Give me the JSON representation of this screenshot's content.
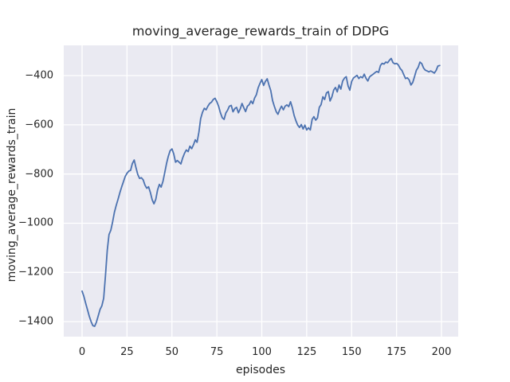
{
  "colors": {
    "figure_bg": "#ffffff",
    "plot_bg": "#eaeaf2",
    "grid": "#ffffff",
    "text": "#262626",
    "line": "#4c72b0"
  },
  "chart_data": {
    "type": "line",
    "title": "moving_average_rewards_train of DDPG",
    "xlabel": "episodes",
    "ylabel": "moving_average_rewards_train",
    "grid": true,
    "legend": false,
    "xlim": [
      -10.2,
      209.3
    ],
    "ylim": [
      -1461,
      -277
    ],
    "x_ticks": [
      {
        "value": 0,
        "label": "0"
      },
      {
        "value": 25,
        "label": "25"
      },
      {
        "value": 50,
        "label": "50"
      },
      {
        "value": 75,
        "label": "75"
      },
      {
        "value": 100,
        "label": "100"
      },
      {
        "value": 125,
        "label": "125"
      },
      {
        "value": 150,
        "label": "150"
      },
      {
        "value": 175,
        "label": "175"
      },
      {
        "value": 200,
        "label": "200"
      }
    ],
    "y_ticks": [
      {
        "value": -400,
        "label": "−400"
      },
      {
        "value": -600,
        "label": "−600"
      },
      {
        "value": -800,
        "label": "−800"
      },
      {
        "value": -1000,
        "label": "−1000"
      },
      {
        "value": -1200,
        "label": "−1200"
      },
      {
        "value": -1400,
        "label": "−1400"
      }
    ],
    "series": [
      {
        "name": "moving_average_rewards_train",
        "color": "#4c72b0",
        "x_start": 0,
        "x_step": 1,
        "values": [
          -1276,
          -1298,
          -1325,
          -1352,
          -1378,
          -1400,
          -1416,
          -1419,
          -1402,
          -1376,
          -1350,
          -1336,
          -1305,
          -1215,
          -1110,
          -1046,
          -1028,
          -995,
          -955,
          -928,
          -903,
          -876,
          -853,
          -831,
          -810,
          -797,
          -788,
          -785,
          -757,
          -743,
          -775,
          -802,
          -818,
          -815,
          -824,
          -845,
          -858,
          -852,
          -875,
          -905,
          -921,
          -903,
          -865,
          -842,
          -853,
          -830,
          -795,
          -757,
          -728,
          -705,
          -698,
          -718,
          -752,
          -745,
          -752,
          -759,
          -734,
          -716,
          -702,
          -709,
          -687,
          -697,
          -681,
          -661,
          -671,
          -630,
          -575,
          -549,
          -533,
          -539,
          -524,
          -513,
          -508,
          -497,
          -492,
          -506,
          -525,
          -551,
          -571,
          -578,
          -552,
          -540,
          -524,
          -521,
          -547,
          -534,
          -529,
          -551,
          -535,
          -513,
          -531,
          -546,
          -524,
          -518,
          -503,
          -514,
          -491,
          -478,
          -449,
          -431,
          -416,
          -440,
          -424,
          -413,
          -438,
          -461,
          -501,
          -525,
          -546,
          -557,
          -538,
          -524,
          -539,
          -524,
          -519,
          -526,
          -506,
          -531,
          -562,
          -584,
          -601,
          -611,
          -599,
          -617,
          -601,
          -621,
          -612,
          -621,
          -578,
          -567,
          -581,
          -572,
          -529,
          -518,
          -486,
          -497,
          -470,
          -465,
          -503,
          -486,
          -459,
          -448,
          -466,
          -438,
          -455,
          -422,
          -410,
          -404,
          -442,
          -459,
          -424,
          -410,
          -404,
          -399,
          -412,
          -404,
          -409,
          -394,
          -411,
          -422,
          -405,
          -399,
          -394,
          -388,
          -383,
          -387,
          -359,
          -350,
          -353,
          -345,
          -348,
          -338,
          -330,
          -347,
          -352,
          -350,
          -357,
          -371,
          -379,
          -396,
          -412,
          -409,
          -417,
          -438,
          -428,
          -404,
          -378,
          -367,
          -345,
          -351,
          -369,
          -378,
          -381,
          -385,
          -381,
          -385,
          -390,
          -379,
          -361,
          -359
        ]
      }
    ]
  }
}
